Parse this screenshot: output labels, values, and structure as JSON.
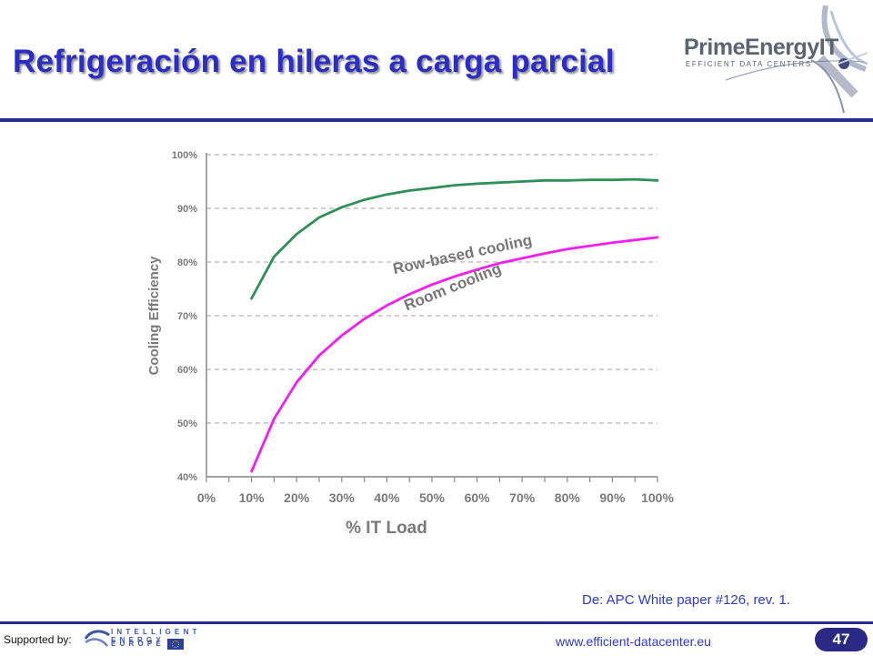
{
  "slide": {
    "title": "Refrigeración en hileras a carga parcial",
    "source": "De: APC White paper #126, rev. 1.",
    "supported_by": "Supported by:",
    "website": "www.efficient-datacenter.eu",
    "page_number": "47"
  },
  "logos": {
    "top_right": {
      "name": "PrimeEnergyIT",
      "tagline": "EFFICIENT DATA CENTERS"
    },
    "bottom_left": {
      "line1": "INTELLIGENT ENERGY",
      "line2": "EUROPE"
    }
  },
  "colors": {
    "title": "#2b2dc4",
    "rule": "#2b2b8f",
    "row_based_cooling": "#2f8f58",
    "room_cooling": "#f21df0",
    "axis_text": "#7a7a7a"
  },
  "chart_data": {
    "type": "line",
    "xlabel": "% IT Load",
    "ylabel": "Cooling Efficiency",
    "x_ticks": [
      "0%",
      "10%",
      "20%",
      "30%",
      "40%",
      "50%",
      "60%",
      "70%",
      "80%",
      "90%",
      "100%"
    ],
    "y_ticks": [
      "40%",
      "50%",
      "60%",
      "70%",
      "80%",
      "90%",
      "100%"
    ],
    "xlim": [
      0,
      100
    ],
    "ylim": [
      40,
      100
    ],
    "grid": "horizontal dashed",
    "series": [
      {
        "name": "Row-based cooling",
        "x": [
          10,
          15,
          20,
          25,
          30,
          35,
          40,
          45,
          50,
          55,
          60,
          65,
          70,
          75,
          80,
          85,
          90,
          95,
          100
        ],
        "y": [
          73.2,
          81,
          85.2,
          88.3,
          90.2,
          91.6,
          92.6,
          93.3,
          93.8,
          94.3,
          94.6,
          94.8,
          95.0,
          95.2,
          95.2,
          95.3,
          95.3,
          95.4,
          95.2
        ]
      },
      {
        "name": "Room cooling",
        "x": [
          10,
          15,
          20,
          25,
          30,
          35,
          40,
          45,
          50,
          55,
          60,
          65,
          70,
          75,
          80,
          85,
          90,
          95,
          100
        ],
        "y": [
          41,
          50.8,
          57.6,
          62.6,
          66.3,
          69.4,
          71.9,
          74.0,
          75.8,
          77.3,
          78.6,
          79.8,
          80.7,
          81.6,
          82.4,
          83.0,
          83.6,
          84.1,
          84.6
        ]
      }
    ]
  }
}
